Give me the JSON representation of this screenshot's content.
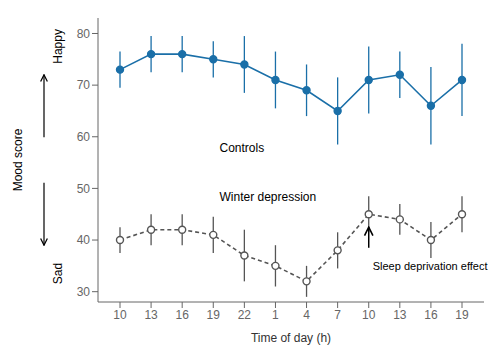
{
  "chart_data": {
    "type": "line",
    "xlabel": "Time of day (h)",
    "ylabel": "Mood score",
    "categories": [
      "10",
      "13",
      "16",
      "19",
      "22",
      "1",
      "4",
      "7",
      "10",
      "13",
      "16",
      "19"
    ],
    "series": [
      {
        "name": "Controls",
        "color": "#1a6fa8",
        "values": [
          73,
          76,
          76,
          75,
          74,
          71,
          69,
          65,
          71,
          72,
          66,
          71
        ],
        "errors": [
          3.5,
          3.5,
          3.5,
          3.5,
          5.5,
          5.5,
          5.0,
          6.5,
          6.5,
          4.5,
          7.5,
          7.0
        ],
        "marker": "filled circle",
        "line_style": "solid"
      },
      {
        "name": "Winter depression",
        "color": "#555555",
        "values": [
          40,
          42,
          42,
          41,
          37,
          35,
          32,
          38,
          45,
          44,
          40,
          45
        ],
        "errors": [
          2.5,
          3.0,
          3.0,
          3.5,
          5.0,
          4.0,
          3.0,
          3.5,
          3.5,
          3.0,
          3.5,
          3.5
        ],
        "marker": "open circle",
        "line_style": "dashed"
      }
    ],
    "ylim": [
      28,
      83
    ],
    "yticks": [
      30,
      40,
      50,
      60,
      70,
      80
    ],
    "grid": false,
    "annotations": [
      "Happy",
      "Sad",
      "Sleep deprivation effect"
    ]
  }
}
